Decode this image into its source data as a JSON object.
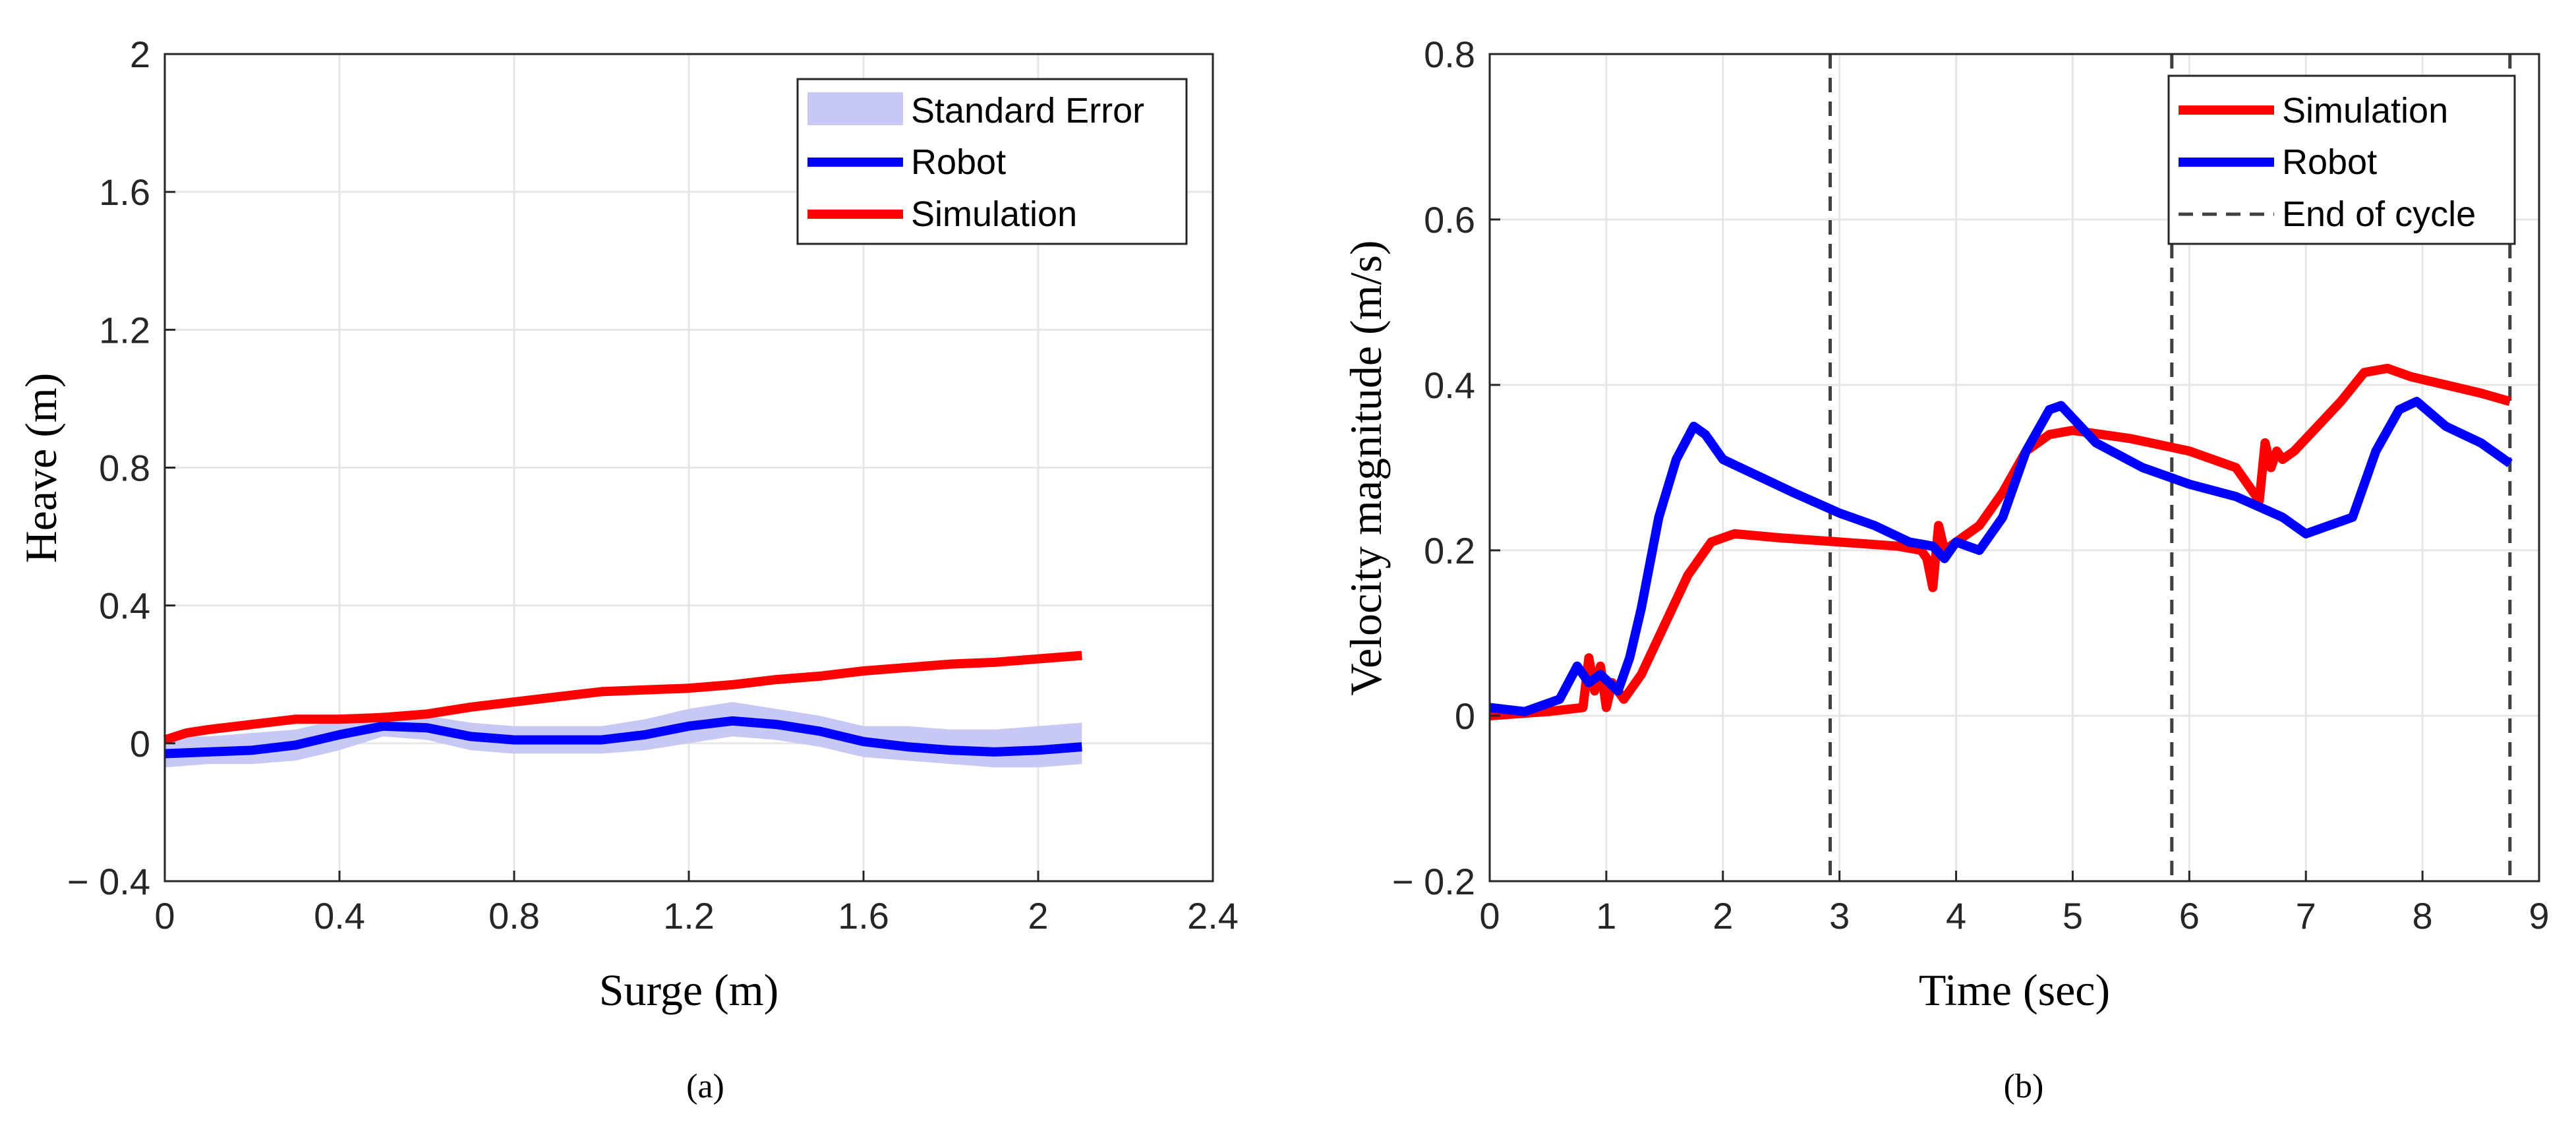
{
  "chart_data": [
    {
      "type": "line",
      "panel": "(a)",
      "xlabel": "Surge (m)",
      "ylabel": "Heave (m)",
      "xlim": [
        0,
        2.4
      ],
      "ylim": [
        -0.4,
        2
      ],
      "xticks": [
        0,
        0.4,
        0.8,
        1.2,
        1.6,
        2,
        2.4
      ],
      "xtick_labels": [
        "0",
        "0.4",
        "0.8",
        "1.2",
        "1.6",
        "2",
        "2.4"
      ],
      "yticks": [
        -0.4,
        0,
        0.4,
        0.8,
        1.2,
        1.6,
        2
      ],
      "ytick_labels": [
        "− 0.4",
        "0",
        "0.4",
        "0.8",
        "1.2",
        "1.6",
        "2"
      ],
      "grid": true,
      "legend_position": "top-right",
      "legend": [
        "Standard Error",
        "Robot",
        "Simulation"
      ],
      "series": [
        {
          "name": "Standard Error",
          "kind": "band",
          "color": "#c8c8f5",
          "x": [
            0,
            0.1,
            0.2,
            0.3,
            0.4,
            0.5,
            0.6,
            0.7,
            0.8,
            0.9,
            1.0,
            1.1,
            1.2,
            1.3,
            1.4,
            1.5,
            1.6,
            1.7,
            1.8,
            1.9,
            2.0,
            2.1
          ],
          "lower": [
            -0.07,
            -0.06,
            -0.06,
            -0.05,
            -0.02,
            0.02,
            0.01,
            -0.02,
            -0.03,
            -0.03,
            -0.03,
            -0.02,
            0.0,
            0.02,
            0.01,
            -0.01,
            -0.04,
            -0.05,
            -0.06,
            -0.07,
            -0.07,
            -0.06
          ],
          "upper": [
            0.02,
            0.02,
            0.03,
            0.04,
            0.07,
            0.09,
            0.08,
            0.06,
            0.05,
            0.05,
            0.05,
            0.07,
            0.1,
            0.12,
            0.1,
            0.08,
            0.05,
            0.05,
            0.04,
            0.04,
            0.05,
            0.06
          ]
        },
        {
          "name": "Robot",
          "color": "#0000ff",
          "x": [
            0,
            0.1,
            0.2,
            0.3,
            0.4,
            0.5,
            0.6,
            0.7,
            0.8,
            0.9,
            1.0,
            1.1,
            1.2,
            1.3,
            1.4,
            1.5,
            1.6,
            1.7,
            1.8,
            1.9,
            2.0,
            2.1
          ],
          "y": [
            -0.03,
            -0.025,
            -0.02,
            -0.005,
            0.025,
            0.05,
            0.045,
            0.02,
            0.01,
            0.01,
            0.01,
            0.025,
            0.05,
            0.065,
            0.055,
            0.035,
            0.005,
            -0.01,
            -0.02,
            -0.025,
            -0.02,
            -0.01
          ]
        },
        {
          "name": "Simulation",
          "color": "#ff0000",
          "x": [
            0,
            0.05,
            0.1,
            0.2,
            0.3,
            0.4,
            0.5,
            0.6,
            0.7,
            0.8,
            0.9,
            1.0,
            1.1,
            1.2,
            1.3,
            1.4,
            1.5,
            1.6,
            1.7,
            1.8,
            1.9,
            2.0,
            2.1
          ],
          "y": [
            0.01,
            0.03,
            0.04,
            0.055,
            0.07,
            0.07,
            0.075,
            0.085,
            0.105,
            0.12,
            0.135,
            0.15,
            0.155,
            0.16,
            0.17,
            0.185,
            0.195,
            0.21,
            0.22,
            0.23,
            0.235,
            0.245,
            0.255
          ]
        }
      ]
    },
    {
      "type": "line",
      "panel": "(b)",
      "xlabel": "Time (sec)",
      "ylabel": "Velocity magnitude (m/s)",
      "xlim": [
        0,
        9
      ],
      "ylim": [
        -0.2,
        0.8
      ],
      "xticks": [
        0,
        1,
        2,
        3,
        4,
        5,
        6,
        7,
        8,
        9
      ],
      "xtick_labels": [
        "0",
        "1",
        "2",
        "3",
        "4",
        "5",
        "6",
        "7",
        "8",
        "9"
      ],
      "yticks": [
        -0.2,
        0,
        0.2,
        0.4,
        0.6,
        0.8
      ],
      "ytick_labels": [
        "− 0.2",
        "0",
        "0.2",
        "0.4",
        "0.6",
        "0.8"
      ],
      "grid": true,
      "legend_position": "top-right",
      "legend": [
        "Simulation",
        "Robot",
        "End of cycle"
      ],
      "cycle_ends": [
        2.92,
        5.85,
        8.75
      ],
      "series": [
        {
          "name": "Simulation",
          "color": "#ff0000",
          "x": [
            0,
            0.5,
            0.8,
            0.85,
            0.9,
            0.95,
            1.0,
            1.05,
            1.15,
            1.3,
            1.5,
            1.7,
            1.9,
            2.1,
            2.5,
            3.0,
            3.5,
            3.7,
            3.75,
            3.8,
            3.85,
            3.9,
            4.0,
            4.2,
            4.4,
            4.6,
            4.8,
            5.0,
            5.5,
            6.0,
            6.4,
            6.6,
            6.65,
            6.7,
            6.75,
            6.8,
            6.9,
            7.1,
            7.3,
            7.5,
            7.7,
            7.9,
            8.2,
            8.5,
            8.75
          ],
          "y": [
            0.0,
            0.005,
            0.01,
            0.07,
            0.03,
            0.06,
            0.01,
            0.04,
            0.02,
            0.05,
            0.11,
            0.17,
            0.21,
            0.22,
            0.215,
            0.21,
            0.205,
            0.2,
            0.19,
            0.155,
            0.23,
            0.2,
            0.21,
            0.23,
            0.27,
            0.32,
            0.34,
            0.345,
            0.335,
            0.32,
            0.3,
            0.26,
            0.33,
            0.3,
            0.32,
            0.31,
            0.32,
            0.35,
            0.38,
            0.415,
            0.42,
            0.41,
            0.4,
            0.39,
            0.38
          ]
        },
        {
          "name": "Robot",
          "color": "#0000ff",
          "x": [
            0,
            0.3,
            0.6,
            0.75,
            0.85,
            0.95,
            1.1,
            1.2,
            1.3,
            1.45,
            1.6,
            1.75,
            1.85,
            2.0,
            2.3,
            2.6,
            3.0,
            3.3,
            3.6,
            3.8,
            3.9,
            4.0,
            4.2,
            4.4,
            4.6,
            4.8,
            4.9,
            5.2,
            5.6,
            6.0,
            6.4,
            6.8,
            7.0,
            7.2,
            7.4,
            7.6,
            7.8,
            7.95,
            8.2,
            8.5,
            8.75
          ],
          "y": [
            0.01,
            0.005,
            0.02,
            0.06,
            0.04,
            0.05,
            0.03,
            0.07,
            0.13,
            0.24,
            0.31,
            0.35,
            0.34,
            0.31,
            0.29,
            0.27,
            0.245,
            0.23,
            0.21,
            0.205,
            0.19,
            0.21,
            0.2,
            0.24,
            0.32,
            0.37,
            0.375,
            0.33,
            0.3,
            0.28,
            0.265,
            0.24,
            0.22,
            0.23,
            0.24,
            0.32,
            0.37,
            0.38,
            0.35,
            0.33,
            0.305
          ]
        }
      ]
    }
  ],
  "captions": [
    "(a)",
    "(b)"
  ]
}
